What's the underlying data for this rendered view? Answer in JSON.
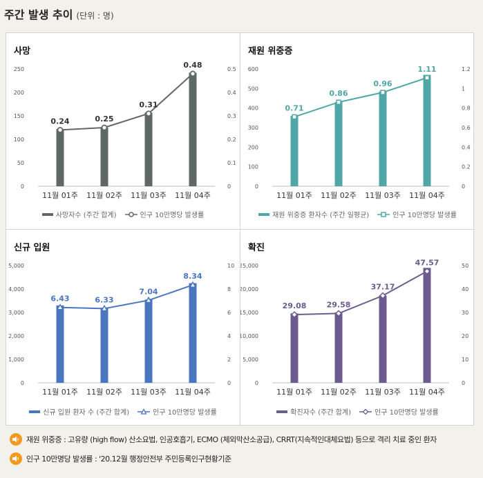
{
  "header": {
    "title": "주간 발생 추이",
    "unit": "(단위 : 명)"
  },
  "panels": [
    {
      "title": "사망",
      "color": "#5f6867",
      "marker": "circle",
      "legend_bar": "사망자수 (주간 합계)",
      "legend_line": "인구 10만명당 발생률"
    },
    {
      "title": "재원 위중증",
      "color": "#4fa7a6",
      "marker": "square",
      "legend_bar": "재원 위중증 환자수 (주간 일평균)",
      "legend_line": "인구 10만명당 발생률"
    },
    {
      "title": "신규 입원",
      "color": "#4a76c0",
      "marker": "triangle",
      "legend_bar": "신규 입원 환자 수 (주간 합계)",
      "legend_line": "인구 10만명당 발생률"
    },
    {
      "title": "확진",
      "color": "#6c5b8f",
      "marker": "diamond",
      "legend_bar": "확진자수 (주간 합계)",
      "legend_line": "인구 10만명당 발생률"
    }
  ],
  "chart_data": [
    {
      "type": "bar",
      "title": "사망",
      "categories": [
        "11월 01주",
        "11월 02주",
        "11월 03주",
        "11월 04주"
      ],
      "series": [
        {
          "name": "사망자수 (주간 합계)",
          "type": "bar",
          "axis": "left",
          "values": [
            122,
            125,
            157,
            242
          ]
        },
        {
          "name": "인구 10만명당 발생률",
          "type": "line",
          "axis": "right",
          "values": [
            0.24,
            0.25,
            0.31,
            0.48
          ],
          "labels": [
            "0.24",
            "0.25",
            "0.31",
            "0.48"
          ]
        }
      ],
      "ylim": [
        0,
        250
      ],
      "yticks": [
        "0",
        "50",
        "100",
        "150",
        "200",
        "250"
      ],
      "y2lim": [
        0,
        0.5
      ],
      "y2ticks": [
        "0",
        "0.1",
        "0.2",
        "0.3",
        "0.4",
        "0.5"
      ]
    },
    {
      "type": "bar",
      "title": "재원 위중증",
      "categories": [
        "11월 01주",
        "11월 02주",
        "11월 03주",
        "11월 04주"
      ],
      "series": [
        {
          "name": "재원 위중증 환자수 (주간 일평균)",
          "type": "bar",
          "axis": "left",
          "values": [
            360,
            430,
            485,
            570
          ]
        },
        {
          "name": "인구 10만명당 발생률",
          "type": "line",
          "axis": "right",
          "values": [
            0.71,
            0.86,
            0.96,
            1.11
          ],
          "labels": [
            "0.71",
            "0.86",
            "0.96",
            "1.11"
          ]
        }
      ],
      "ylim": [
        0,
        600
      ],
      "yticks": [
        "0",
        "100",
        "200",
        "300",
        "400",
        "500",
        "600"
      ],
      "y2lim": [
        0,
        1.2
      ],
      "y2ticks": [
        "0",
        "0.2",
        "0.4",
        "0.6",
        "0.8",
        "1",
        "1.2"
      ]
    },
    {
      "type": "bar",
      "title": "신규 입원",
      "categories": [
        "11월 01주",
        "11월 02주",
        "11월 03주",
        "11월 04주"
      ],
      "series": [
        {
          "name": "신규 입원 환자 수 (주간 합계)",
          "type": "bar",
          "axis": "left",
          "values": [
            3300,
            3200,
            3550,
            4250
          ]
        },
        {
          "name": "인구 10만명당 발생률",
          "type": "line",
          "axis": "right",
          "values": [
            6.43,
            6.33,
            7.04,
            8.34
          ],
          "labels": [
            "6.43",
            "6.33",
            "7.04",
            "8.34"
          ]
        }
      ],
      "ylim": [
        0,
        5000
      ],
      "yticks": [
        "0",
        "1,000",
        "2,000",
        "3,000",
        "4,000",
        "5,000"
      ],
      "y2lim": [
        0,
        10
      ],
      "y2ticks": [
        "0",
        "2",
        "4",
        "6",
        "8",
        "10"
      ]
    },
    {
      "type": "bar",
      "title": "확진",
      "categories": [
        "11월 01주",
        "11월 02주",
        "11월 03주",
        "11월 04주"
      ],
      "series": [
        {
          "name": "확진자수 (주간 합계)",
          "type": "bar",
          "axis": "left",
          "values": [
            14800,
            15000,
            18600,
            24500
          ]
        },
        {
          "name": "인구 10만명당 발생률",
          "type": "line",
          "axis": "right",
          "values": [
            29.08,
            29.58,
            37.17,
            47.57
          ],
          "labels": [
            "29.08",
            "29.58",
            "37.17",
            "47.57"
          ]
        }
      ],
      "ylim": [
        0,
        25000
      ],
      "yticks": [
        "0",
        "5,000",
        "10,000",
        "15,000",
        "20,000",
        "25,000"
      ],
      "y2lim": [
        0,
        50
      ],
      "y2ticks": [
        "0",
        "10",
        "20",
        "30",
        "40",
        "50"
      ]
    }
  ],
  "notes": [
    "재원 위중증 : 고유량 (high flow) 산소요법, 인공호흡기, ECMO (체외막산소공급), CRRT(지속적인대체요법) 등으로 격리 치료 중인 환자",
    "인구 10만명당 발생률 : '20.12월 행정안전부 주민등록인구현황기준"
  ],
  "icons": {
    "note": "speaker-icon",
    "note_color": "#f29a1f"
  }
}
